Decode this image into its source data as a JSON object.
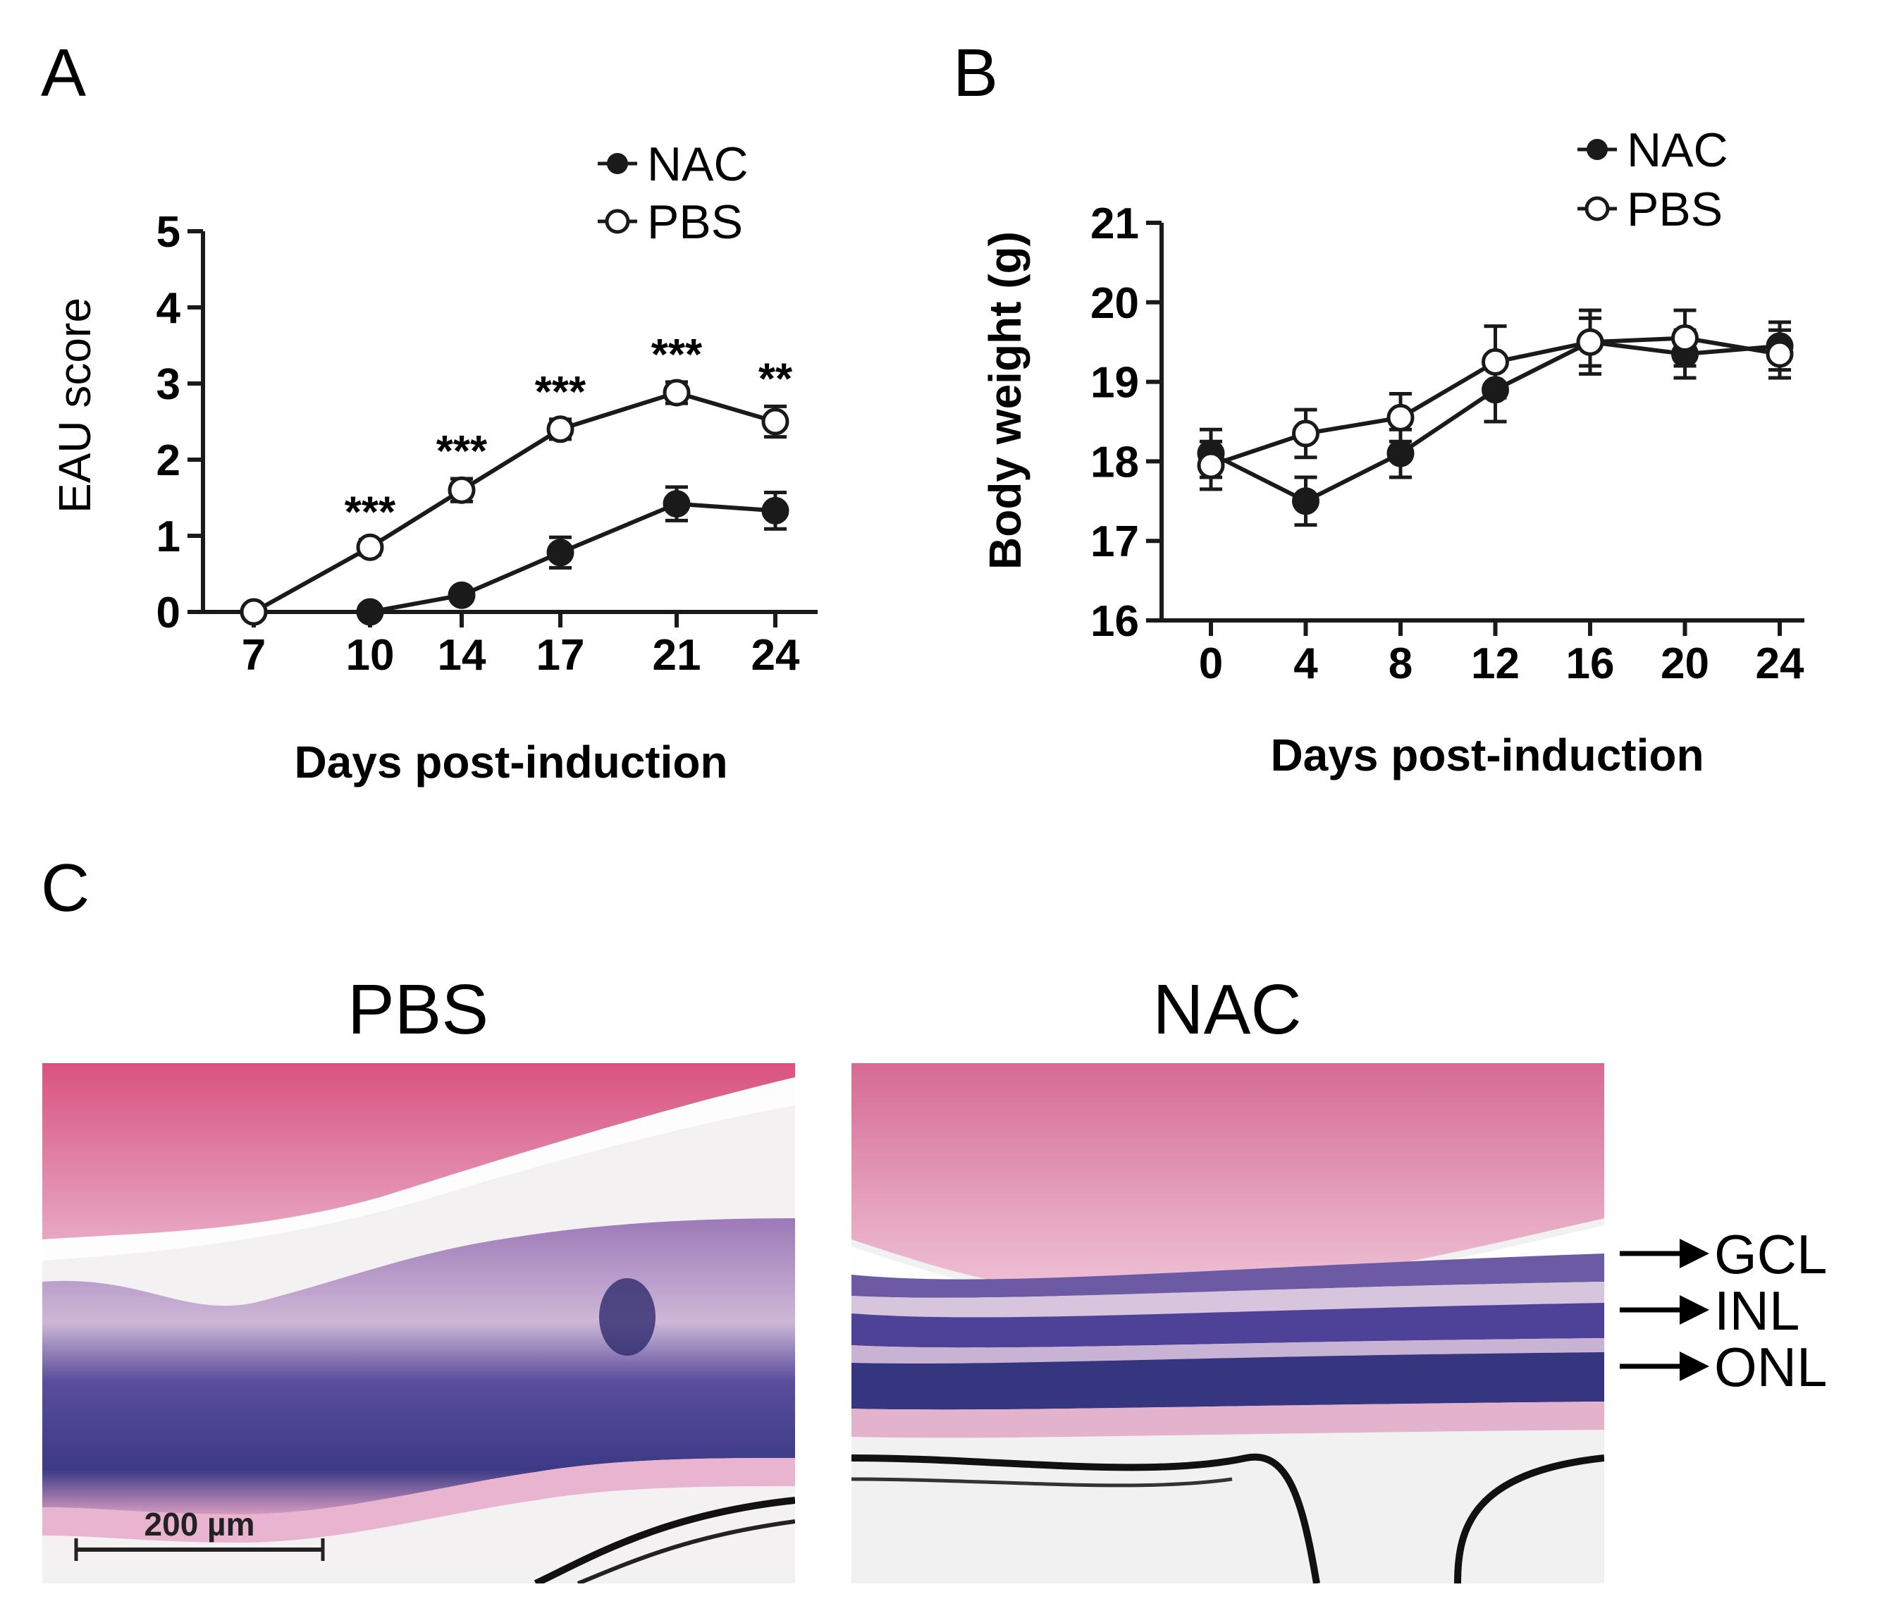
{
  "panels": {
    "a": {
      "letter": "A"
    },
    "b": {
      "letter": "B"
    },
    "c": {
      "letter": "C"
    }
  },
  "chart_data": [
    {
      "id": "A",
      "type": "line",
      "title": "",
      "xlabel": "Days post-induction",
      "ylabel": "EAU score",
      "x_ticks": [
        "7",
        "10",
        "14",
        "17",
        "21",
        "24"
      ],
      "y_ticks": [
        "0",
        "1",
        "2",
        "3",
        "4",
        "5"
      ],
      "ylim": [
        0,
        5
      ],
      "grid": false,
      "legend_position": "top-right",
      "series": [
        {
          "name": "NAC",
          "marker": "filled-circle",
          "x": [
            7,
            10,
            14,
            17,
            21,
            24
          ],
          "y": [
            0,
            0,
            0.22,
            0.78,
            1.42,
            1.33
          ],
          "err": [
            0,
            0,
            0.05,
            0.2,
            0.22,
            0.24
          ]
        },
        {
          "name": "PBS",
          "marker": "open-circle",
          "x": [
            7,
            10,
            14,
            17,
            21,
            24
          ],
          "y": [
            0,
            0.85,
            1.6,
            2.4,
            2.88,
            2.5
          ],
          "err": [
            0,
            0.1,
            0.15,
            0.13,
            0.14,
            0.2
          ]
        }
      ],
      "annotations": [
        {
          "x": 10,
          "text": "***"
        },
        {
          "x": 14,
          "text": "***"
        },
        {
          "x": 17,
          "text": "***"
        },
        {
          "x": 21,
          "text": "***"
        },
        {
          "x": 24,
          "text": "**"
        }
      ]
    },
    {
      "id": "B",
      "type": "line",
      "title": "",
      "xlabel": "Days post-induction",
      "ylabel": "Body weight (g)",
      "x_ticks": [
        "0",
        "4",
        "8",
        "12",
        "16",
        "20",
        "24"
      ],
      "y_ticks": [
        "16",
        "17",
        "18",
        "19",
        "20",
        "21"
      ],
      "ylim": [
        16,
        21
      ],
      "grid": false,
      "legend_position": "top-right",
      "series": [
        {
          "name": "NAC",
          "marker": "filled-circle",
          "x": [
            0,
            4,
            8,
            12,
            16,
            20,
            24
          ],
          "y": [
            18.1,
            17.5,
            18.1,
            18.9,
            19.5,
            19.35,
            19.45
          ],
          "err": [
            0.3,
            0.3,
            0.3,
            0.4,
            0.4,
            0.3,
            0.3
          ]
        },
        {
          "name": "PBS",
          "marker": "open-circle",
          "x": [
            0,
            4,
            8,
            12,
            16,
            20,
            24
          ],
          "y": [
            17.95,
            18.35,
            18.55,
            19.25,
            19.5,
            19.55,
            19.35
          ],
          "err": [
            0.3,
            0.3,
            0.3,
            0.45,
            0.3,
            0.35,
            0.3
          ]
        }
      ]
    }
  ],
  "micrographs": {
    "pbs": {
      "title": "PBS",
      "scale_bar": "200 µm"
    },
    "nac": {
      "title": "NAC",
      "layers": [
        "GCL",
        "INL",
        "ONL"
      ]
    }
  },
  "colors": {
    "line": "#1a1a1a",
    "stain_pink": "#e7a3c2",
    "stain_purple": "#4a3a8e",
    "background": "#ffffff"
  }
}
